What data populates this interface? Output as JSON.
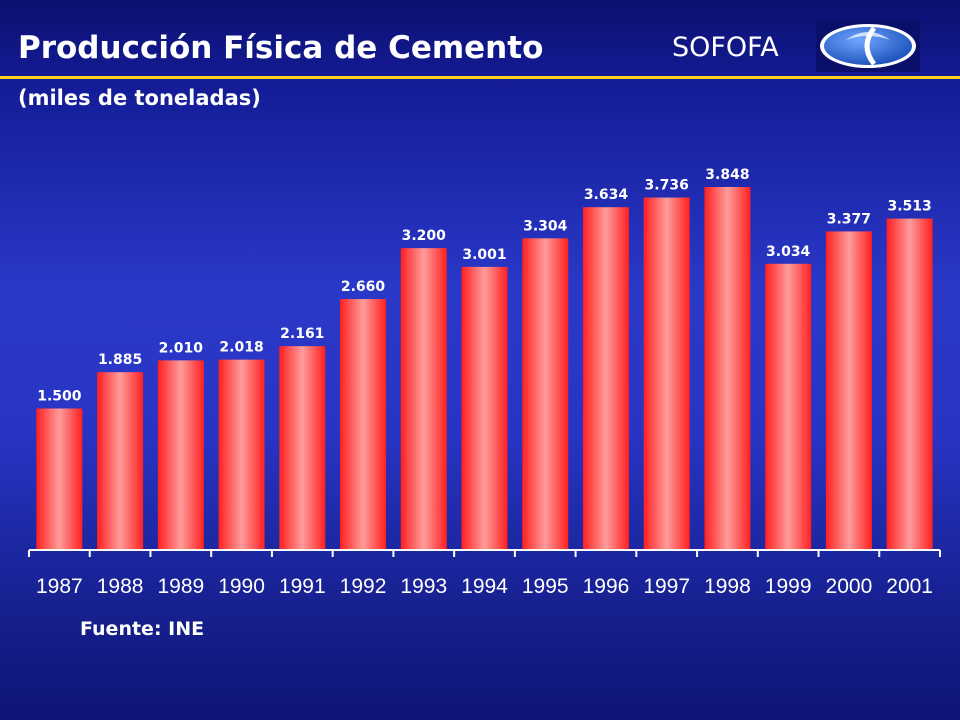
{
  "header": {
    "title": "Producción Física de Cemento",
    "subtitle": "(miles de toneladas)",
    "brand": "SOFOFA",
    "logo_icon": "sofofa-logo-icon"
  },
  "colors": {
    "background": "#2a38c8",
    "bar": "#ff3a3a",
    "accent_rule": "#ffd21f",
    "text": "#ffffff"
  },
  "chart_data": {
    "type": "bar",
    "categories": [
      "1987",
      "1988",
      "1989",
      "1990",
      "1991",
      "1992",
      "1993",
      "1994",
      "1995",
      "1996",
      "1997",
      "1998",
      "1999",
      "2000",
      "2001"
    ],
    "values": [
      1500,
      1885,
      2010,
      2018,
      2161,
      2660,
      3200,
      3001,
      3304,
      3634,
      3736,
      3848,
      3034,
      3377,
      3513
    ],
    "data_labels": [
      "1.500",
      "1.885",
      "2.010",
      "2.018",
      "2.161",
      "2.660",
      "3.200",
      "3.001",
      "3.304",
      "3.634",
      "3.736",
      "3.848",
      "3.034",
      "3.377",
      "3.513"
    ],
    "title": "Producción Física de Cemento",
    "subtitle": "(miles de toneladas)",
    "xlabel": "",
    "ylabel": "",
    "ylim": [
      0,
      3848
    ],
    "grid": false,
    "legend": "none"
  },
  "footer": {
    "source": "Fuente: INE"
  }
}
